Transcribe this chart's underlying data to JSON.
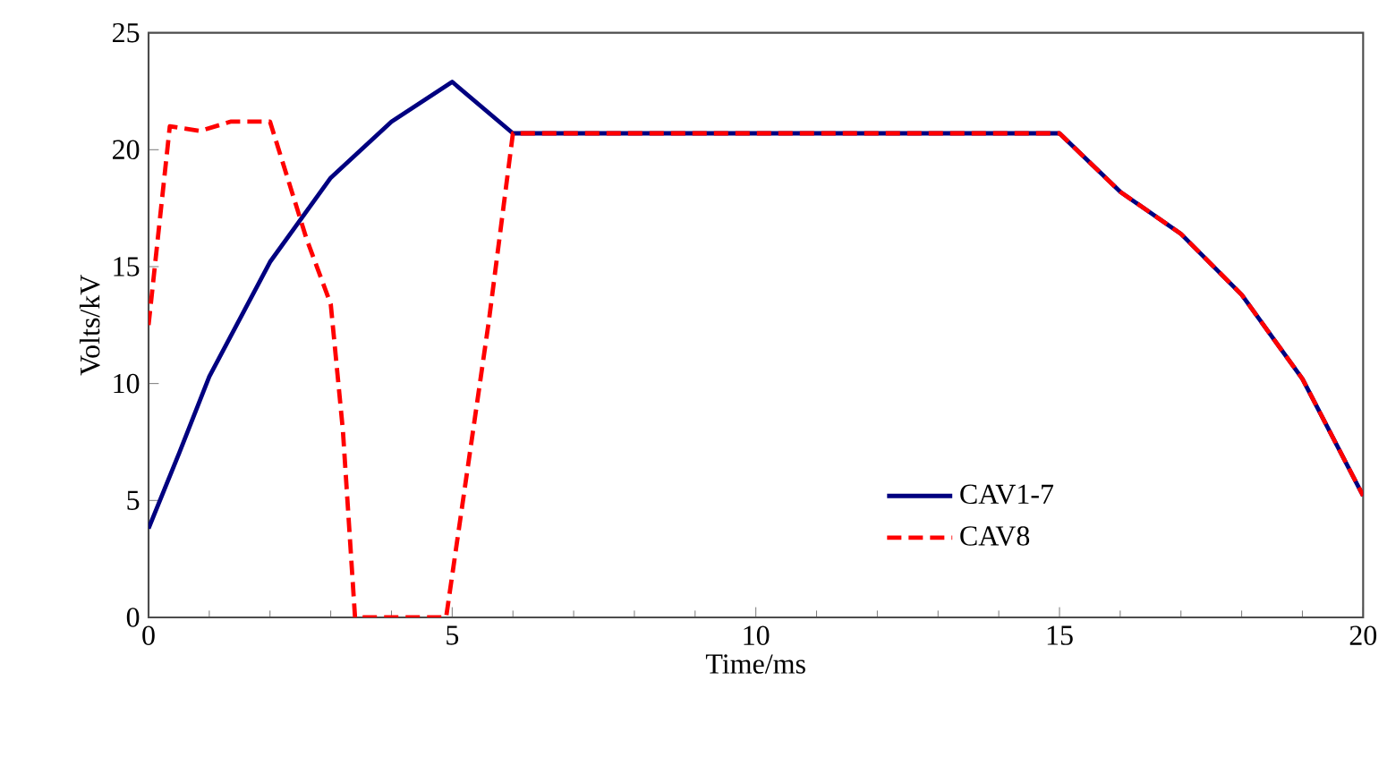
{
  "chart_data": {
    "type": "line",
    "xlabel": "Time/ms",
    "ylabel": "Volts/kV",
    "xlim": [
      0,
      20
    ],
    "ylim": [
      0,
      25
    ],
    "xticks": [
      0,
      5,
      10,
      15,
      20
    ],
    "yticks": [
      0,
      5,
      10,
      15,
      20,
      25
    ],
    "grid": false,
    "legend": "bottom right",
    "marker": "none",
    "series": [
      {
        "name": "CAV1-7",
        "color": "#000080",
        "line_style": "solid",
        "x": [
          0,
          0.5,
          1,
          2,
          3,
          4,
          5,
          6,
          15,
          16,
          17,
          18,
          19,
          20
        ],
        "values": [
          3.8,
          7.0,
          10.3,
          15.2,
          18.8,
          21.2,
          22.9,
          20.7,
          20.7,
          18.2,
          16.4,
          13.8,
          10.2,
          5.2
        ]
      },
      {
        "name": "CAV8",
        "color": "#ff0000",
        "line_style": "dashed",
        "x": [
          0,
          0.35,
          0.85,
          1.35,
          2,
          2.6,
          3,
          3.2,
          3.4,
          4.9,
          5.6,
          6,
          15,
          16,
          17,
          18,
          19,
          20
        ],
        "values": [
          12.5,
          21.0,
          20.8,
          21.2,
          21.2,
          16.2,
          13.4,
          8.0,
          0,
          0,
          12.6,
          20.7,
          20.7,
          18.2,
          16.4,
          13.8,
          10.2,
          5.2
        ]
      }
    ]
  }
}
